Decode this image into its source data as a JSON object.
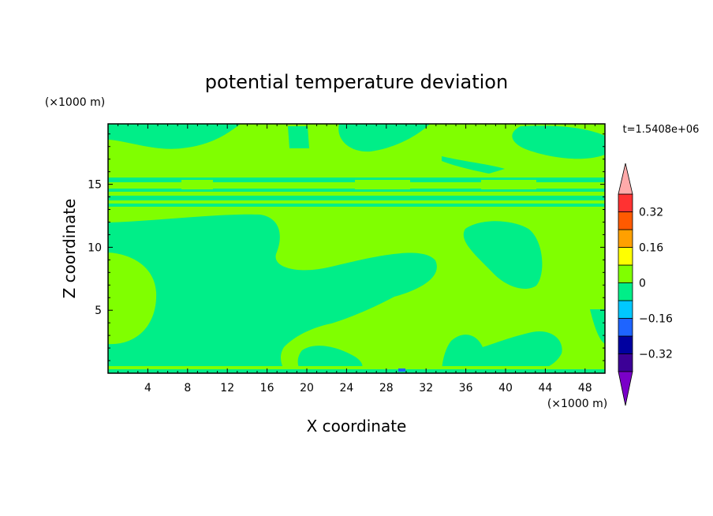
{
  "chart_data": {
    "type": "heatmap",
    "title": "potential temperature deviation",
    "xlabel": "X coordinate",
    "ylabel": "Z coordinate",
    "x_unit": "(×1000 m)",
    "y_unit": "(×1000 m)",
    "time_label": "t=1.5408e+06",
    "xlim": [
      0,
      50
    ],
    "ylim": [
      0,
      19.8
    ],
    "x_ticks": [
      4,
      8,
      12,
      16,
      20,
      24,
      28,
      32,
      36,
      40,
      44,
      48
    ],
    "y_ticks": [
      5,
      10,
      15
    ],
    "colorbar": {
      "levels": [
        -0.48,
        -0.4,
        -0.32,
        -0.24,
        -0.16,
        -0.08,
        0,
        0.08,
        0.16,
        0.24,
        0.32,
        0.4
      ],
      "labels": [
        "-0.32",
        "-0.16",
        "0",
        "0.16",
        "0.32"
      ],
      "label_values": [
        -0.32,
        -0.16,
        0,
        0.16,
        0.32
      ],
      "colors": [
        "#7a00c8",
        "#3c0096",
        "#0000a0",
        "#1e64ff",
        "#00c8ff",
        "#00ee88",
        "#80ff00",
        "#ffff00",
        "#ffa000",
        "#ff5a00",
        "#ff3232",
        "#ffaaaa"
      ]
    }
  }
}
